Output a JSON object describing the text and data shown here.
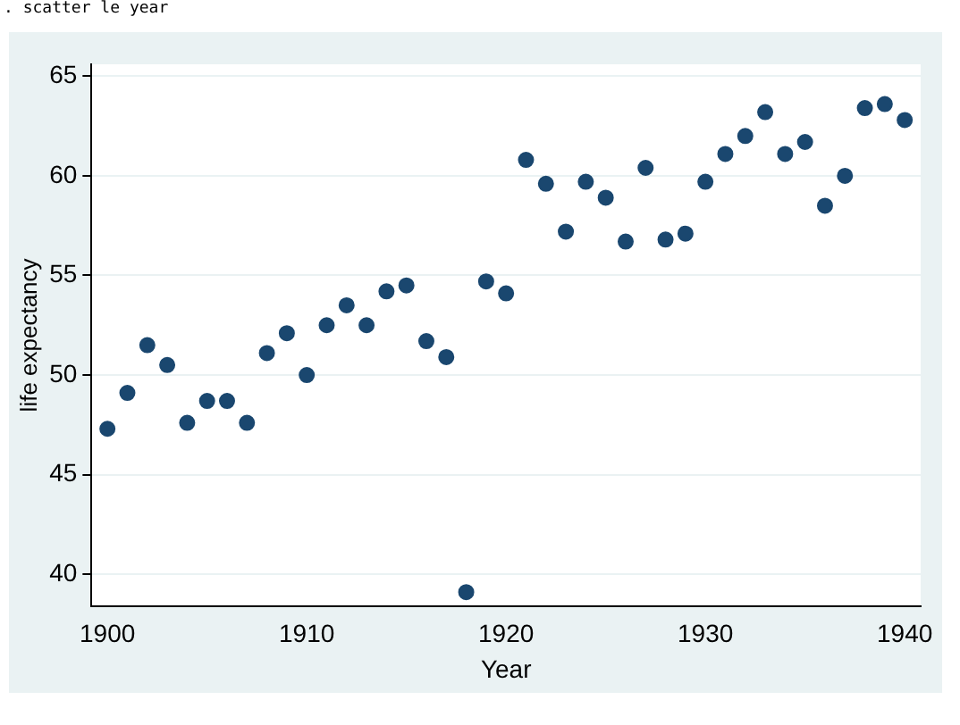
{
  "chart_data": {
    "type": "scatter",
    "xlabel": "Year",
    "ylabel": "life expectancy",
    "annotations": [
      ". scatter le year"
    ],
    "x": [
      1900,
      1901,
      1902,
      1903,
      1904,
      1905,
      1906,
      1907,
      1908,
      1909,
      1910,
      1911,
      1912,
      1913,
      1914,
      1915,
      1916,
      1917,
      1918,
      1919,
      1920,
      1921,
      1922,
      1923,
      1924,
      1925,
      1926,
      1927,
      1928,
      1929,
      1930,
      1931,
      1932,
      1933,
      1934,
      1935,
      1936,
      1937,
      1938,
      1939,
      1940
    ],
    "series": [
      {
        "color": "#1a476f",
        "values": [
          47.3,
          49.1,
          51.5,
          50.5,
          47.6,
          48.7,
          48.7,
          47.6,
          51.1,
          52.1,
          50.0,
          52.5,
          53.5,
          52.5,
          54.2,
          54.5,
          51.7,
          50.9,
          39.1,
          54.7,
          54.1,
          60.8,
          59.6,
          57.2,
          59.7,
          58.9,
          56.7,
          60.4,
          56.8,
          57.1,
          59.7,
          61.1,
          62.0,
          63.2,
          61.1,
          61.7,
          58.5,
          60.0,
          63.4,
          63.6,
          62.8
        ]
      }
    ],
    "xlim": [
      1899.2,
      1940.8
    ],
    "xticks": [
      1900,
      1910,
      1920,
      1930,
      1940
    ],
    "ylim": [
      38.4,
      65.6
    ],
    "yticks": [
      40,
      45,
      50,
      55,
      60,
      65
    ],
    "grid": "y",
    "legend": false,
    "marker": "circle"
  }
}
